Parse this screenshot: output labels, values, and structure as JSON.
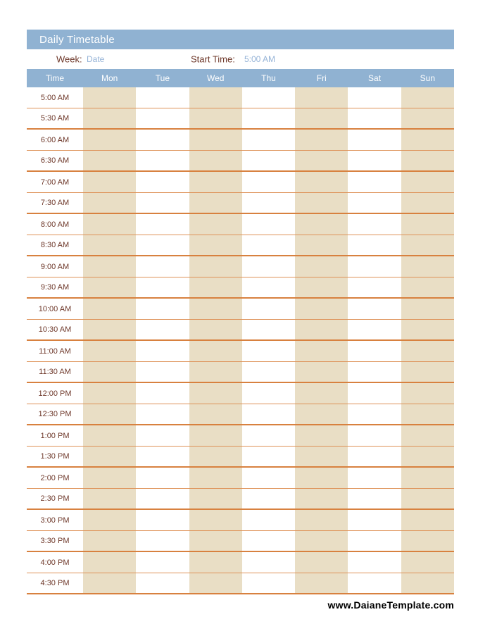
{
  "window": {
    "title": "Daily Timetable",
    "footer": "www.DaianeTemplate.com"
  },
  "info": {
    "week_label": "Week:",
    "week_value": "Date",
    "start_time_label": "Start Time:",
    "start_time_value": "5:00 AM"
  },
  "table": {
    "columns": [
      "Time",
      "Mon",
      "Tue",
      "Wed",
      "Thu",
      "Fri",
      "Sat",
      "Sun"
    ],
    "day_keys": [
      "mon",
      "tue",
      "wed",
      "thu",
      "fri",
      "sat",
      "sun"
    ],
    "times": [
      "5:00 AM",
      "5:30 AM",
      "6:00 AM",
      "6:30 AM",
      "7:00 AM",
      "7:30 AM",
      "8:00 AM",
      "8:30 AM",
      "9:00 AM",
      "9:30 AM",
      "10:00 AM",
      "10:30 AM",
      "11:00 AM",
      "11:30 AM",
      "12:00 PM",
      "12:30 PM",
      "1:00 PM",
      "1:30 PM",
      "2:00 PM",
      "2:30 PM",
      "3:00 PM",
      "3:30 PM",
      "4:00 PM",
      "4:30 PM"
    ]
  },
  "colors": {
    "header_blue": "#90B2D2",
    "cell_tan": "#E9DEC5",
    "line_orange": "#D8813F",
    "line_orange_light": "#DE9258",
    "text_maroon": "#6E382A",
    "text_light_blue": "#95B3D7",
    "footer_black": "#000000"
  }
}
